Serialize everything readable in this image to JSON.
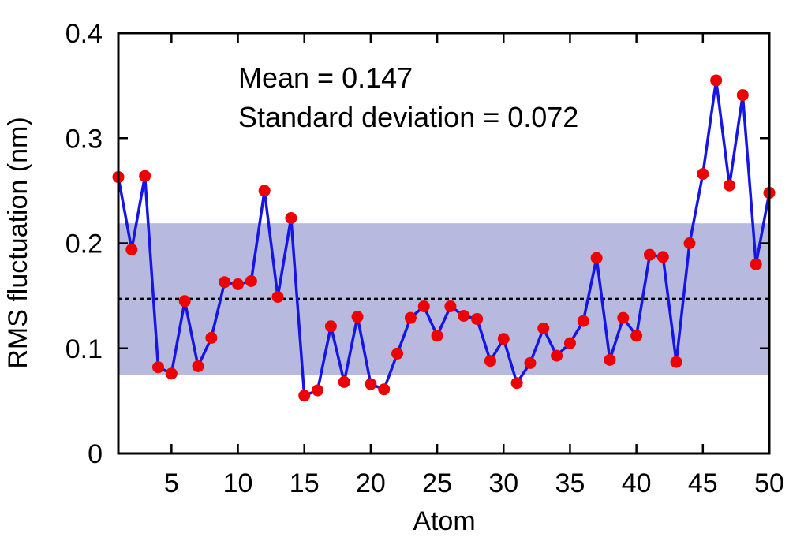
{
  "chart_data": {
    "type": "line",
    "xlabel": "Atom",
    "ylabel": "RMS fluctuation (nm)",
    "xlim": [
      1,
      50
    ],
    "ylim": [
      0,
      0.4
    ],
    "x_ticks": [
      5,
      10,
      15,
      20,
      25,
      30,
      35,
      40,
      45,
      50
    ],
    "y_ticks": [
      0,
      0.1,
      0.2,
      0.3,
      0.4
    ],
    "y_tick_labels": [
      "0",
      "0.1",
      "0.2",
      "0.3",
      "0.4"
    ],
    "grid": false,
    "annotations": [
      "Mean = 0.147",
      "Standard deviation = 0.072"
    ],
    "mean": 0.147,
    "std_band": [
      0.075,
      0.219
    ],
    "colors": {
      "line": "#1515e6",
      "marker": "#ee0000",
      "band": "#b7b9de",
      "mean_line": "#000000"
    },
    "series": [
      {
        "x": [
          1,
          2,
          3,
          4,
          5,
          6,
          7,
          8,
          9,
          10,
          11,
          12,
          13,
          14,
          15,
          16,
          17,
          18,
          19,
          20,
          21,
          22,
          23,
          24,
          25,
          26,
          27,
          28,
          29,
          30,
          31,
          32,
          33,
          34,
          35,
          36,
          37,
          38,
          39,
          40,
          41,
          42,
          43,
          44,
          45,
          46,
          47,
          48,
          49,
          50
        ],
        "values": [
          0.263,
          0.194,
          0.264,
          0.082,
          0.076,
          0.145,
          0.083,
          0.11,
          0.163,
          0.161,
          0.164,
          0.25,
          0.149,
          0.224,
          0.055,
          0.06,
          0.121,
          0.068,
          0.13,
          0.066,
          0.061,
          0.095,
          0.129,
          0.14,
          0.112,
          0.14,
          0.131,
          0.128,
          0.088,
          0.109,
          0.067,
          0.086,
          0.119,
          0.093,
          0.105,
          0.126,
          0.186,
          0.089,
          0.129,
          0.112,
          0.189,
          0.187,
          0.087,
          0.2,
          0.266,
          0.355,
          0.255,
          0.341,
          0.18,
          0.248
        ]
      }
    ]
  }
}
